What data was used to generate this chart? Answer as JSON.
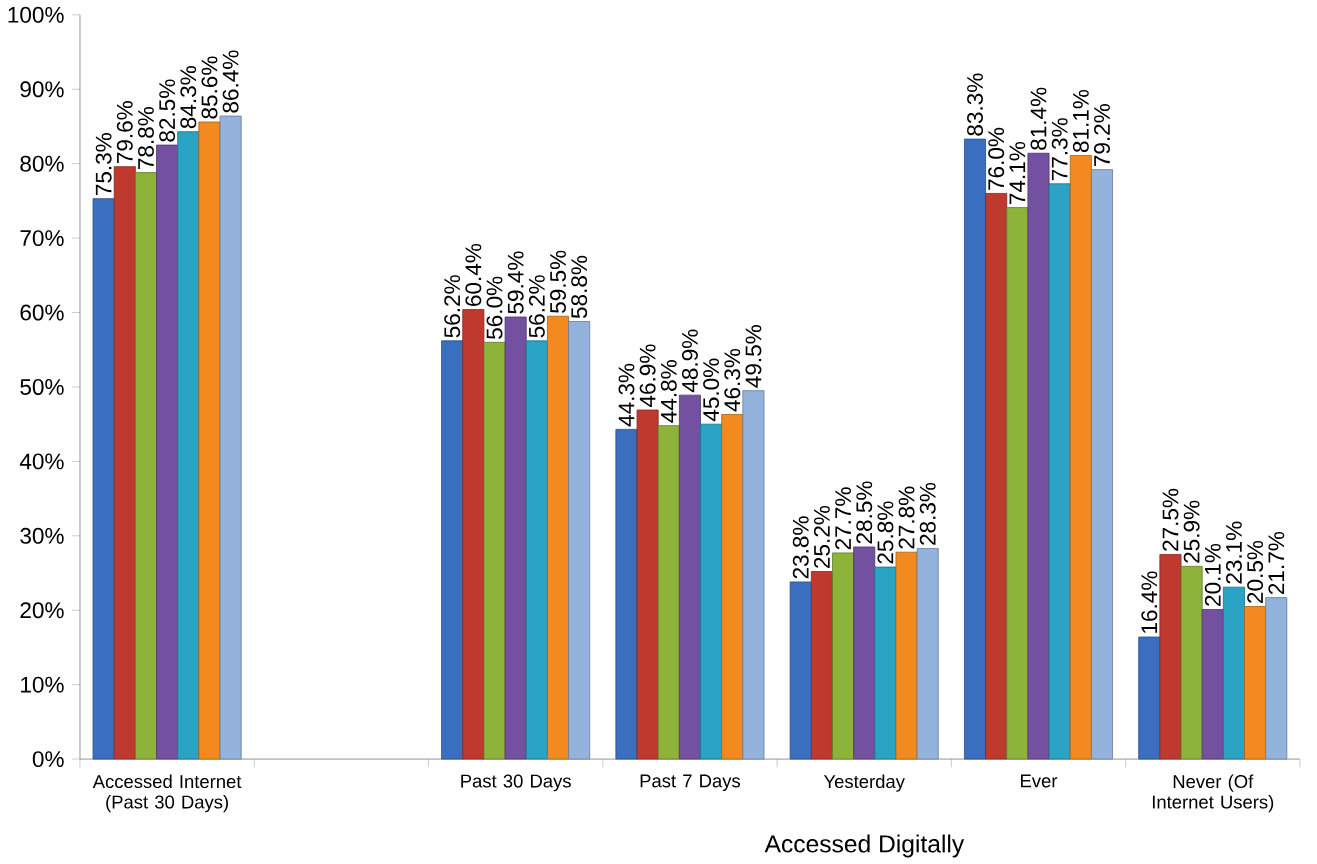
{
  "chart_data": {
    "type": "bar",
    "categories": [
      "Accessed Internet (Past 30 Days)",
      null,
      "Past 30 Days",
      "Past 7 Days",
      "Yesterday",
      "Ever",
      "Never (Of Internet Users)"
    ],
    "xlabel": "Accessed Digitally",
    "ylim": [
      0,
      100
    ],
    "yticks": [
      {
        "value": 0,
        "label": "0%"
      },
      {
        "value": 10,
        "label": "10%"
      },
      {
        "value": 20,
        "label": "20%"
      },
      {
        "value": 30,
        "label": "30%"
      },
      {
        "value": 40,
        "label": "40%"
      },
      {
        "value": 50,
        "label": "50%"
      },
      {
        "value": 60,
        "label": "60%"
      },
      {
        "value": 70,
        "label": "70%"
      },
      {
        "value": 80,
        "label": "80%"
      },
      {
        "value": 90,
        "label": "90%"
      },
      {
        "value": 100,
        "label": "100%"
      }
    ],
    "series": [
      {
        "color": "#3a6fc0",
        "values": [
          75.3,
          null,
          56.2,
          44.3,
          23.8,
          83.3,
          16.4
        ],
        "value_labels": [
          "75.3%",
          null,
          "56.2%",
          "44.3%",
          "23.8%",
          "83.3%",
          "16.4%"
        ]
      },
      {
        "color": "#c0392f",
        "values": [
          79.6,
          null,
          60.4,
          46.9,
          25.2,
          76.0,
          27.5
        ],
        "value_labels": [
          "79.6%",
          null,
          "60.4%",
          "46.9%",
          "25.2%",
          "76.0%",
          "27.5%"
        ]
      },
      {
        "color": "#8db33a",
        "values": [
          78.8,
          null,
          56.0,
          44.8,
          27.7,
          74.1,
          25.9
        ],
        "value_labels": [
          "78.8%",
          null,
          "56.0%",
          "44.8%",
          "27.7%",
          "74.1%",
          "25.9%"
        ]
      },
      {
        "color": "#7451a0",
        "values": [
          82.5,
          null,
          59.4,
          48.9,
          28.5,
          81.4,
          20.1
        ],
        "value_labels": [
          "82.5%",
          null,
          "59.4%",
          "48.9%",
          "28.5%",
          "81.4%",
          "20.1%"
        ]
      },
      {
        "color": "#2aa3c4",
        "values": [
          84.3,
          null,
          56.2,
          45.0,
          25.8,
          77.3,
          23.1
        ],
        "value_labels": [
          "84.3%",
          null,
          "56.2%",
          "45.0%",
          "25.8%",
          "77.3%",
          "23.1%"
        ]
      },
      {
        "color": "#f28a1f",
        "values": [
          85.6,
          null,
          59.5,
          46.3,
          27.8,
          81.1,
          20.5
        ],
        "value_labels": [
          "85.6%",
          null,
          "59.5%",
          "46.3%",
          "27.8%",
          "81.1%",
          "20.5%"
        ]
      },
      {
        "color": "#93b3dc",
        "values": [
          86.4,
          null,
          58.8,
          49.5,
          28.3,
          79.2,
          21.7
        ],
        "value_labels": [
          "86.4%",
          null,
          "58.8%",
          "49.5%",
          "28.3%",
          "79.2%",
          "21.7%"
        ]
      }
    ]
  }
}
